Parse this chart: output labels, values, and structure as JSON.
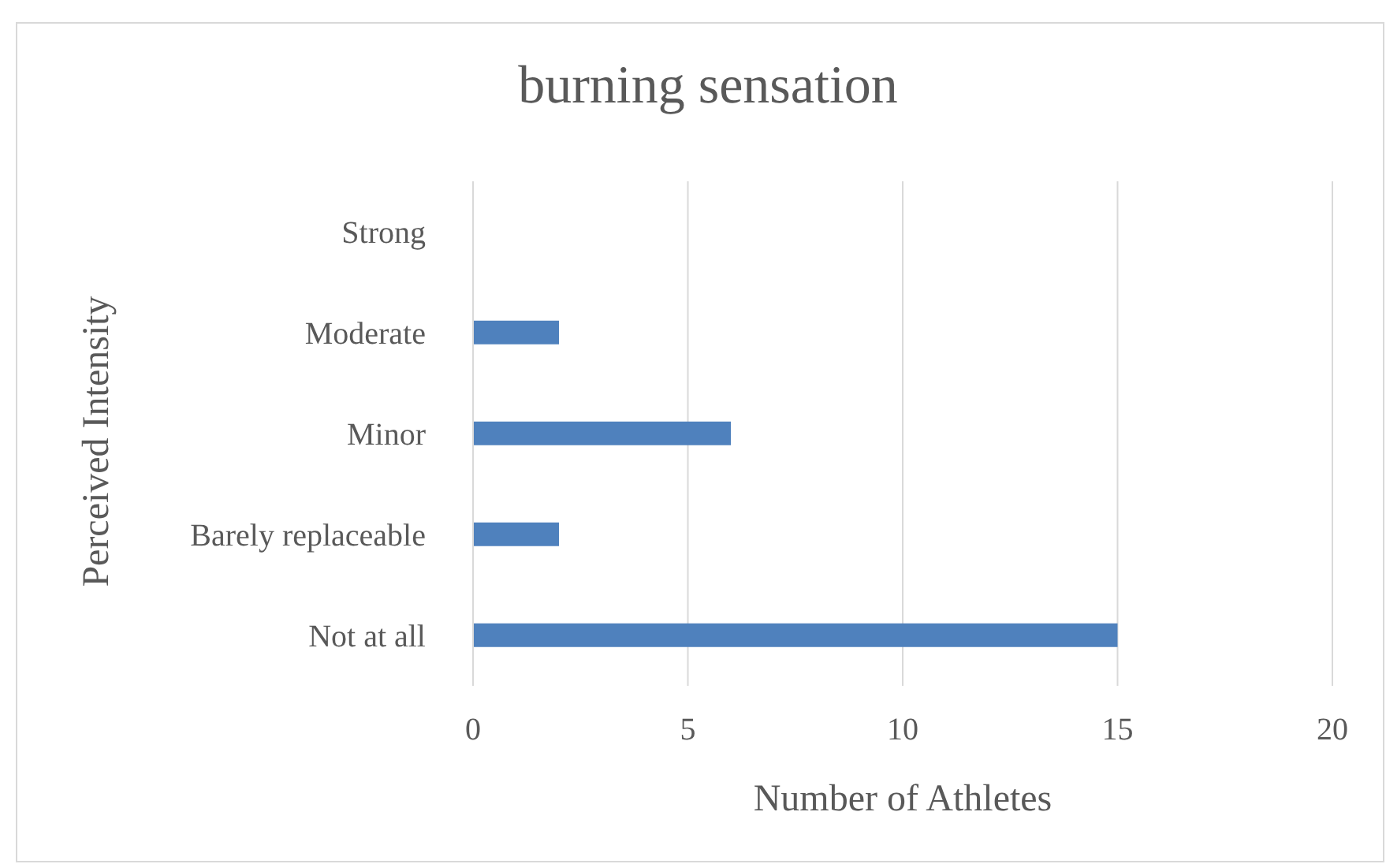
{
  "chart_data": {
    "type": "bar",
    "orientation": "horizontal",
    "title": "burning sensation",
    "xlabel": "Number of Athletes",
    "ylabel": "Perceived Intensity",
    "categories": [
      "Strong",
      "Moderate",
      "Minor",
      "Barely replaceable",
      "Not at all"
    ],
    "values": [
      0,
      2,
      6,
      2,
      15
    ],
    "color": "#4f81bd",
    "xlim": [
      0,
      20
    ],
    "xticks": [
      0,
      5,
      10,
      15,
      20
    ],
    "grid": "x"
  }
}
